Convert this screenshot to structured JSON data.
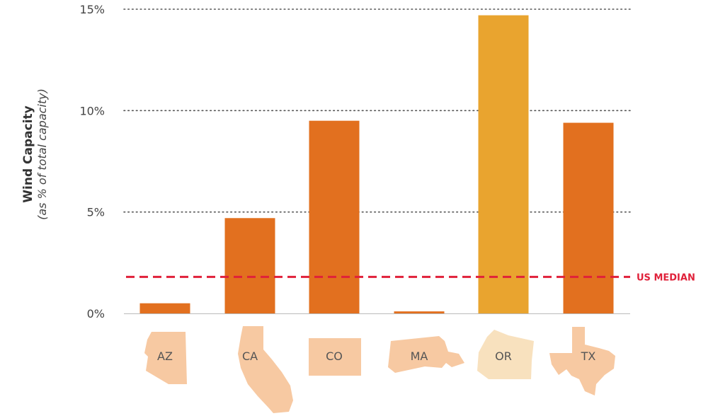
{
  "chart_data": {
    "type": "bar",
    "categories": [
      "AZ",
      "CA",
      "CO",
      "MA",
      "OR",
      "TX"
    ],
    "values": [
      0.5,
      4.7,
      9.5,
      0.1,
      14.7,
      9.4
    ],
    "ylim": [
      0,
      15
    ],
    "yticks": [
      0,
      5,
      10,
      15
    ],
    "ytick_labels": [
      "0%",
      "5%",
      "10%",
      "15%"
    ],
    "ylabel": "Wind Capacity",
    "ylabel_sub": "(as % of total capacity)",
    "xlabel": "",
    "title": "",
    "grid": true,
    "reference_line": {
      "label": "US MEDIAN",
      "value": 1.8,
      "color": "#e0213a"
    },
    "bar_color": "#e2701f",
    "highlight_color": "#e9a42f",
    "highlight_category": "OR",
    "state_shape_color": "#f7c9a2",
    "state_shape_highlight_color": "#f8e1be"
  }
}
